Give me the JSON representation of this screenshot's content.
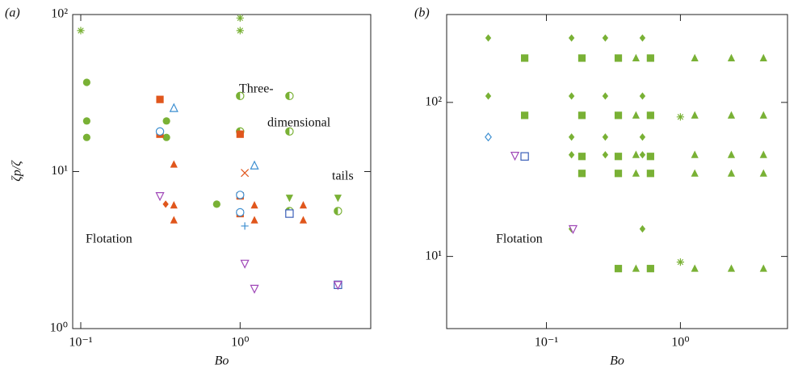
{
  "chart_data": [
    {
      "type": "scatter",
      "panel_label": "(a)",
      "xlabel": "Bo",
      "ylabel": "ζp/ζ",
      "log_x": true,
      "log_y": true,
      "xlim": [
        0.089,
        6.6
      ],
      "ylim": [
        1,
        100
      ],
      "xticks": [
        {
          "value": 0.1,
          "label": "10⁻¹"
        },
        {
          "value": 1,
          "label": "10⁰"
        }
      ],
      "yticks": [
        {
          "value": 1,
          "label": "10⁰"
        },
        {
          "value": 10,
          "label": "10¹"
        },
        {
          "value": 100,
          "label": "10²"
        }
      ],
      "annotations": [
        "Three-",
        "dimensional",
        "tails",
        "Flotation"
      ],
      "series": [
        {
          "marker": "asterisk",
          "color": "#79b135",
          "x": [
            0.1,
            1,
            1
          ],
          "y": [
            79,
            95,
            79
          ]
        },
        {
          "marker": "circle",
          "color": "#79b135",
          "x": [
            0.109,
            0.109,
            0.109,
            0.345,
            0.345,
            0.713
          ],
          "y": [
            37,
            21,
            16.5,
            21,
            16.5,
            6.2
          ]
        },
        {
          "marker": "half-circle",
          "color": "#79b135",
          "x": [
            1,
            1,
            2.04,
            2.04,
            2.04,
            4.11
          ],
          "y": [
            30.3,
            18,
            30.3,
            18,
            5.6,
            5.6
          ]
        },
        {
          "marker": "triangle-down",
          "color": "#79b135",
          "x": [
            2.04,
            4.11
          ],
          "y": [
            6.8,
            6.8
          ]
        },
        {
          "marker": "square",
          "color": "#e0561c",
          "x": [
            0.314,
            0.314,
            1,
            1,
            1
          ],
          "y": [
            28.8,
            17.3,
            17.3,
            7,
            5.4
          ]
        },
        {
          "marker": "triangle",
          "color": "#e0561c",
          "x": [
            0.384,
            0.384,
            0.384,
            1.23,
            1.23,
            2.49,
            2.49
          ],
          "y": [
            11.1,
            6.1,
            4.9,
            6.1,
            4.9,
            6.1,
            4.9
          ]
        },
        {
          "marker": "diamond",
          "color": "#e0561c",
          "x": [
            0.341
          ],
          "y": [
            6.2
          ]
        },
        {
          "marker": "cross",
          "color": "#e0561c",
          "x": [
            1.07
          ],
          "y": [
            9.8
          ]
        },
        {
          "marker": "open-circle",
          "color": "#3d8fd1",
          "x": [
            0.314,
            1,
            1
          ],
          "y": [
            18,
            7.1,
            5.5
          ]
        },
        {
          "marker": "open-triangle",
          "color": "#3d8fd1",
          "x": [
            0.384,
            1.23
          ],
          "y": [
            25.3,
            10.9
          ]
        },
        {
          "marker": "plus",
          "color": "#3d8fd1",
          "x": [
            1.07
          ],
          "y": [
            4.5
          ]
        },
        {
          "marker": "open-square",
          "color": "#3b5fb8",
          "x": [
            2.04,
            4.11
          ],
          "y": [
            5.4,
            1.9
          ]
        },
        {
          "marker": "open-triangle-down",
          "color": "#a048b8",
          "x": [
            0.314,
            1.07,
            1.23,
            4.11
          ],
          "y": [
            7,
            2.6,
            1.8,
            1.9
          ]
        }
      ]
    },
    {
      "type": "scatter",
      "panel_label": "(b)",
      "xlabel": "Bo",
      "log_x": true,
      "log_y": true,
      "xlim": [
        0.018,
        6.3
      ],
      "ylim": [
        3.4,
        372
      ],
      "xticks": [
        {
          "value": 0.1,
          "label": "10⁻¹"
        },
        {
          "value": 1,
          "label": "10⁰"
        }
      ],
      "yticks": [
        {
          "value": 10,
          "label": "10¹"
        },
        {
          "value": 100,
          "label": "10²"
        }
      ],
      "annotations": [
        "Flotation"
      ],
      "series": [
        {
          "marker": "diamond",
          "color": "#79b135",
          "x": [
            0.0368,
            0.0368,
            0.154,
            0.154,
            0.154,
            0.154,
            0.154,
            0.275,
            0.275,
            0.275,
            0.275,
            0.521,
            0.521,
            0.521,
            0.521,
            0.521
          ],
          "y": [
            262,
            110,
            262,
            110,
            59.6,
            45.7,
            15.1,
            262,
            110,
            59.6,
            45.7,
            262,
            110,
            59.6,
            45.7,
            15.1
          ]
        },
        {
          "marker": "square",
          "color": "#79b135",
          "x": [
            0.0688,
            0.0688,
            0.184,
            0.184,
            0.184,
            0.184,
            0.344,
            0.344,
            0.344,
            0.344,
            0.344,
            0.598,
            0.598,
            0.598,
            0.598,
            0.598
          ],
          "y": [
            194,
            82.4,
            194,
            82.4,
            44.6,
            34.6,
            194,
            82.4,
            44.6,
            34.6,
            8.34,
            194,
            82.4,
            44.6,
            34.6,
            8.34
          ]
        },
        {
          "marker": "triangle",
          "color": "#79b135",
          "x": [
            0.466,
            0.466,
            0.466,
            0.466,
            0.466,
            1.28,
            1.28,
            1.28,
            1.28,
            1.28,
            2.4,
            2.4,
            2.4,
            2.4,
            2.4,
            4.17,
            4.17,
            4.17,
            4.17,
            4.17
          ],
          "y": [
            194,
            82.4,
            45.7,
            34.6,
            8.34,
            194,
            82.4,
            45.7,
            34.6,
            8.34,
            194,
            82.4,
            45.7,
            34.6,
            8.34,
            194,
            82.4,
            45.7,
            34.6,
            8.34
          ]
        },
        {
          "marker": "asterisk",
          "color": "#79b135",
          "x": [
            1,
            1
          ],
          "y": [
            80.5,
            9.19
          ]
        },
        {
          "marker": "open-diamond",
          "color": "#3d8fd1",
          "x": [
            0.0368
          ],
          "y": [
            59.6
          ]
        },
        {
          "marker": "open-triangle-down",
          "color": "#a048b8",
          "x": [
            0.0582,
            0.158
          ],
          "y": [
            45.2,
            15.1
          ]
        },
        {
          "marker": "open-square",
          "color": "#3b5fb8",
          "x": [
            0.0688
          ],
          "y": [
            44.6
          ]
        }
      ]
    }
  ]
}
